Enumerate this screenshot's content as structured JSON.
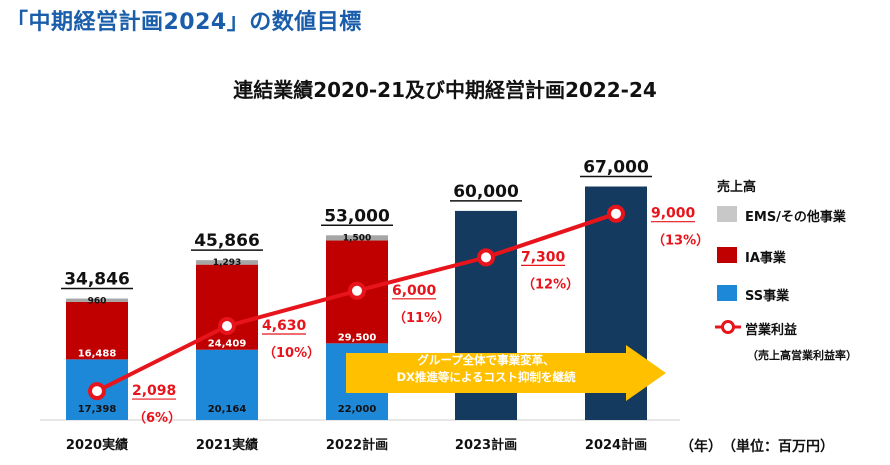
{
  "page_title": "「中期経営計画2024」の数値目標",
  "chart_title": "連結業績2020-21及び中期経営計画2022-24",
  "legend": {
    "header": "売上高",
    "items": [
      {
        "label": "EMS/その他事業",
        "color": "#c8c8c8"
      },
      {
        "label": "IA事業",
        "color": "#c00000"
      },
      {
        "label": "SS事業",
        "color": "#1e88d8"
      },
      {
        "label": "営業利益",
        "color": "#e8141b"
      }
    ],
    "note": "（売上高営業利益率）"
  },
  "unit_label": "（年）　（単位：百万円）",
  "arrow_text": [
    "グループ全体で事業変革、",
    "DX推進等によるコスト抑制を継続"
  ],
  "chart_data": {
    "type": "bar",
    "categories": [
      "2020実績",
      "2021実績",
      "2022計画",
      "2023計画",
      "2024計画"
    ],
    "stacked_segments": [
      {
        "name": "SS事業",
        "values": [
          17398,
          20164,
          22000,
          null,
          null
        ],
        "labels": [
          "17,398",
          "20,164",
          "22,000",
          "",
          ""
        ],
        "color": "#1e88d8"
      },
      {
        "name": "IA事業",
        "values": [
          16488,
          24409,
          29500,
          null,
          null
        ],
        "labels": [
          "16,488",
          "24,409",
          "29,500",
          "",
          ""
        ],
        "color": "#c00000"
      },
      {
        "name": "EMS/その他事業",
        "values": [
          960,
          1293,
          1500,
          null,
          null
        ],
        "labels": [
          "960",
          "1,293",
          "1,500",
          "",
          ""
        ],
        "color": "#a6a6a6"
      }
    ],
    "total_only_color": "#143a5f",
    "totals": [
      34846,
      45866,
      53000,
      60000,
      67000
    ],
    "total_labels": [
      "34,846",
      "45,866",
      "53,000",
      "60,000",
      "67,000"
    ],
    "operating_profit": {
      "name": "営業利益",
      "values": [
        2098,
        4630,
        6000,
        7300,
        9000
      ],
      "labels": [
        "2,098",
        "4,630",
        "6,000",
        "7,300",
        "9,000"
      ],
      "margins": [
        "（6%）",
        "（10%）",
        "（11%）",
        "（12%）",
        "（13%）"
      ],
      "color": "#e8141b"
    }
  }
}
